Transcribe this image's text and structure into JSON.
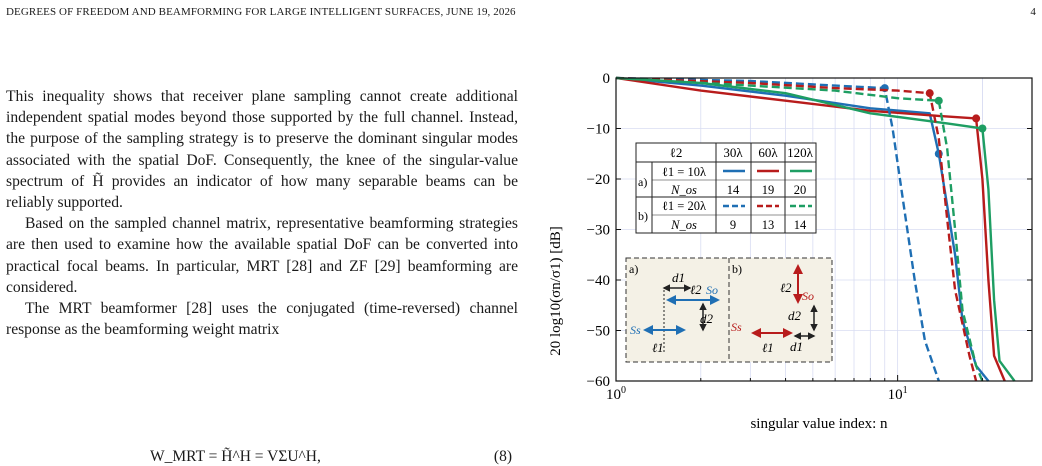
{
  "header": {
    "title": "DEGREES OF FREEDOM AND BEAMFORMING FOR LARGE INTELLIGENT SURFACES, JUNE 19, 2026",
    "page": "4"
  },
  "text": {
    "p1": "This inequality shows that receiver plane sampling cannot create additional independent spatial modes beyond those supported by the full channel. Instead, the purpose of the sampling strategy is to preserve the dominant singular modes associated with the spatial DoF. Consequently, the knee of the singular-value spectrum of H̃ provides an indicator of how many separable beams can be reliably supported.",
    "p2": "Based on the sampled channel matrix, representative beamforming strategies are then used to examine how the available spatial DoF can be converted into practical focal beams. In particular, MRT [28] and ZF [29] beamforming are considered.",
    "p3": "The MRT beamformer [28] uses the conjugated (time-reversed) channel response as the beamforming weight matrix",
    "eq": "W_MRT = H̃^H = VΣU^H,",
    "eq_num": "(8)"
  },
  "chart_data": {
    "type": "line",
    "xlabel": "singular value index: n",
    "ylabel": "20 log10(σn/σ1) [dB]",
    "xscale": "log",
    "xlim": [
      1,
      30
    ],
    "ylim": [
      -60,
      0
    ],
    "xticks": [
      "10^0",
      "10^1"
    ],
    "yticks": [
      "0",
      "−10",
      "−20",
      "−30",
      "−40",
      "−50",
      "−60"
    ],
    "grid": true,
    "colors": {
      "blue": "#1f6fb4",
      "red": "#b81c1c",
      "green": "#1e9e63"
    },
    "series": [
      {
        "name": "ℓ1 = 10λ, ℓ2 = 30λ",
        "color": "#1f6fb4",
        "dash": false,
        "N_os": 14,
        "x": [
          1,
          2,
          4,
          8,
          13,
          14,
          16,
          17,
          19,
          21
        ],
        "y": [
          0,
          -1.5,
          -3.5,
          -6,
          -7,
          -15,
          -35,
          -48,
          -57,
          -60
        ]
      },
      {
        "name": "ℓ1 = 10λ, ℓ2 = 60λ",
        "color": "#b81c1c",
        "dash": false,
        "N_os": 19,
        "x": [
          1,
          2,
          4,
          8,
          14,
          19,
          20,
          21,
          22,
          24
        ],
        "y": [
          0,
          -2.5,
          -4.5,
          -6.5,
          -7.5,
          -8,
          -20,
          -40,
          -55,
          -60
        ]
      },
      {
        "name": "ℓ1 = 10λ, ℓ2 = 120λ",
        "color": "#1e9e63",
        "dash": false,
        "N_os": 20,
        "x": [
          1,
          2,
          4,
          8,
          15,
          20,
          21,
          22,
          23,
          26
        ],
        "y": [
          0,
          -1,
          -3,
          -7,
          -9,
          -10,
          -22,
          -44,
          -56,
          -60
        ]
      },
      {
        "name": "ℓ1 = 20λ, ℓ2 = 30λ",
        "color": "#1f6fb4",
        "dash": true,
        "N_os": 9,
        "x": [
          1,
          3,
          6,
          9,
          9.6,
          10.5,
          11.5,
          12.5,
          14
        ],
        "y": [
          0,
          -0.6,
          -1.5,
          -2,
          -10,
          -25,
          -40,
          -52,
          -60
        ]
      },
      {
        "name": "ℓ1 = 20λ, ℓ2 = 60λ",
        "color": "#b81c1c",
        "dash": true,
        "N_os": 13,
        "x": [
          1,
          3,
          6,
          10,
          13,
          14,
          15,
          16,
          18,
          19
        ],
        "y": [
          0,
          -1,
          -2,
          -2.5,
          -3,
          -12,
          -28,
          -42,
          -55,
          -60
        ]
      },
      {
        "name": "ℓ1 = 20λ, ℓ2 = 120λ",
        "color": "#1e9e63",
        "dash": true,
        "N_os": 14,
        "x": [
          1,
          3,
          6,
          10,
          14,
          15,
          16,
          17,
          19,
          20
        ],
        "y": [
          0,
          -1.5,
          -2.5,
          -4,
          -4.5,
          -14,
          -30,
          -46,
          -57,
          -60
        ]
      }
    ],
    "table": {
      "header": [
        "ℓ2",
        "30λ",
        "60λ",
        "120λ"
      ],
      "rows": [
        {
          "group": "a)",
          "label": "ℓ1 = 10λ",
          "sub": "N_os",
          "values": [
            "14",
            "19",
            "20"
          ]
        },
        {
          "group": "b)",
          "label": "ℓ1 = 20λ",
          "sub": "N_os",
          "values": [
            "9",
            "13",
            "14"
          ]
        }
      ]
    },
    "inset": {
      "a": {
        "tag": "a)",
        "d1": "d1",
        "d2": "d2",
        "l1": "ℓ1",
        "l2": "ℓ2",
        "So": "So",
        "Ss": "Ss"
      },
      "b": {
        "tag": "b)",
        "d1": "d1",
        "d2": "d2",
        "l1": "ℓ1",
        "l2": "ℓ2",
        "So": "So",
        "Ss": "Ss"
      }
    }
  }
}
